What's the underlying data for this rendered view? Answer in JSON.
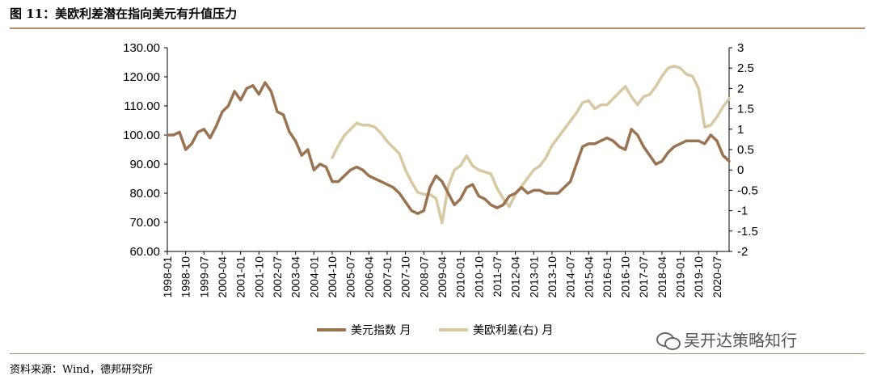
{
  "figure": {
    "title": "图 11：美欧利差潜在指向美元有升值压力",
    "source": "资料来源：Wind，德邦研究所",
    "watermark": "吴开达策略知行"
  },
  "chart_data": {
    "type": "line",
    "title": "",
    "x_tick_labels": [
      "1998-01",
      "1998-10",
      "1999-07",
      "2000-04",
      "2001-01",
      "2001-10",
      "2002-07",
      "2003-04",
      "2004-01",
      "2004-10",
      "2005-07",
      "2006-04",
      "2007-01",
      "2007-10",
      "2008-07",
      "2009-04",
      "2010-01",
      "2010-10",
      "2011-07",
      "2012-04",
      "2013-01",
      "2013-10",
      "2014-07",
      "2015-04",
      "2016-01",
      "2016-10",
      "2017-07",
      "2018-04",
      "2019-01",
      "2019-10",
      "2020-07"
    ],
    "left_axis": {
      "ylim": [
        60,
        130
      ],
      "ticks": [
        "60.00",
        "70.00",
        "80.00",
        "90.00",
        "100.00",
        "110.00",
        "120.00",
        "130.00"
      ]
    },
    "right_axis": {
      "ylim": [
        -2,
        3
      ],
      "ticks": [
        "-2",
        "-1.5",
        "-1",
        "-0.5",
        "0",
        "0.5",
        "1",
        "1.5",
        "2",
        "2.5",
        "3"
      ]
    },
    "legend_position": "bottom",
    "colors": {
      "dxy": "#9a7350",
      "spread": "#d9c9a3"
    },
    "series": [
      {
        "name": "美元指数 月",
        "axis": "left",
        "x": [
          "1998-01",
          "1998-04",
          "1998-07",
          "1998-10",
          "1999-01",
          "1999-04",
          "1999-07",
          "1999-10",
          "2000-01",
          "2000-04",
          "2000-07",
          "2000-10",
          "2001-01",
          "2001-04",
          "2001-07",
          "2001-10",
          "2002-01",
          "2002-04",
          "2002-07",
          "2002-10",
          "2003-01",
          "2003-04",
          "2003-07",
          "2003-10",
          "2004-01",
          "2004-04",
          "2004-07",
          "2004-10",
          "2005-01",
          "2005-04",
          "2005-07",
          "2005-10",
          "2006-01",
          "2006-04",
          "2006-07",
          "2006-10",
          "2007-01",
          "2007-04",
          "2007-07",
          "2007-10",
          "2008-01",
          "2008-04",
          "2008-07",
          "2008-10",
          "2009-01",
          "2009-04",
          "2009-07",
          "2009-10",
          "2010-01",
          "2010-04",
          "2010-07",
          "2010-10",
          "2011-01",
          "2011-04",
          "2011-07",
          "2011-10",
          "2012-01",
          "2012-04",
          "2012-07",
          "2012-10",
          "2013-01",
          "2013-04",
          "2013-07",
          "2013-10",
          "2014-01",
          "2014-04",
          "2014-07",
          "2014-10",
          "2015-01",
          "2015-04",
          "2015-07",
          "2015-10",
          "2016-01",
          "2016-04",
          "2016-07",
          "2016-10",
          "2017-01",
          "2017-04",
          "2017-07",
          "2017-10",
          "2018-01",
          "2018-04",
          "2018-07",
          "2018-10",
          "2019-01",
          "2019-04",
          "2019-07",
          "2019-10",
          "2020-01",
          "2020-04",
          "2020-07",
          "2020-10",
          "2021-01"
        ],
        "values": [
          100,
          100,
          101,
          95,
          97,
          101,
          102,
          99,
          103,
          108,
          110,
          115,
          112,
          116,
          117,
          114,
          118,
          115,
          108,
          107,
          101,
          98,
          93,
          95,
          88,
          90,
          89,
          84,
          84,
          86,
          88,
          89,
          88,
          86,
          85,
          84,
          83,
          82,
          80,
          77,
          74,
          73,
          74,
          82,
          86,
          84,
          80,
          76,
          78,
          82,
          83,
          79,
          78,
          76,
          75,
          76,
          79,
          80,
          82,
          80,
          81,
          81,
          80,
          80,
          80,
          82,
          84,
          90,
          96,
          97,
          97,
          98,
          99,
          98,
          96,
          95,
          102,
          100,
          96,
          93,
          90,
          91,
          94,
          96,
          97,
          98,
          98,
          98,
          97,
          100,
          98,
          93,
          91
        ]
      },
      {
        "name": "美欧利差(右) 月",
        "axis": "right",
        "x": [
          "2004-10",
          "2005-01",
          "2005-04",
          "2005-07",
          "2005-10",
          "2006-01",
          "2006-04",
          "2006-07",
          "2006-10",
          "2007-01",
          "2007-04",
          "2007-07",
          "2007-10",
          "2008-01",
          "2008-04",
          "2008-07",
          "2008-10",
          "2009-01",
          "2009-04",
          "2009-07",
          "2009-10",
          "2010-01",
          "2010-04",
          "2010-07",
          "2010-10",
          "2011-01",
          "2011-04",
          "2011-07",
          "2011-10",
          "2012-01",
          "2012-04",
          "2012-07",
          "2012-10",
          "2013-01",
          "2013-04",
          "2013-07",
          "2013-10",
          "2014-01",
          "2014-04",
          "2014-07",
          "2014-10",
          "2015-01",
          "2015-04",
          "2015-07",
          "2015-10",
          "2016-01",
          "2016-04",
          "2016-07",
          "2016-10",
          "2017-01",
          "2017-04",
          "2017-07",
          "2017-10",
          "2018-01",
          "2018-04",
          "2018-07",
          "2018-10",
          "2019-01",
          "2019-04",
          "2019-07",
          "2019-10",
          "2020-01",
          "2020-04",
          "2020-07",
          "2020-10",
          "2021-01"
        ],
        "values": [
          0.3,
          0.6,
          0.85,
          1.0,
          1.15,
          1.1,
          1.1,
          1.05,
          0.9,
          0.7,
          0.55,
          0.4,
          0.0,
          -0.3,
          -0.55,
          -0.6,
          -0.6,
          -0.7,
          -1.3,
          -0.4,
          0.0,
          0.1,
          0.35,
          0.1,
          0.0,
          -0.05,
          -0.1,
          -0.45,
          -0.7,
          -0.9,
          -0.6,
          -0.4,
          -0.2,
          0.0,
          0.1,
          0.3,
          0.6,
          0.8,
          1.0,
          1.2,
          1.4,
          1.65,
          1.7,
          1.5,
          1.6,
          1.6,
          1.75,
          1.9,
          2.05,
          1.8,
          1.6,
          1.8,
          1.85,
          2.05,
          2.3,
          2.5,
          2.55,
          2.5,
          2.35,
          2.3,
          2.0,
          1.05,
          1.1,
          1.3,
          1.55,
          1.75
        ]
      }
    ]
  }
}
